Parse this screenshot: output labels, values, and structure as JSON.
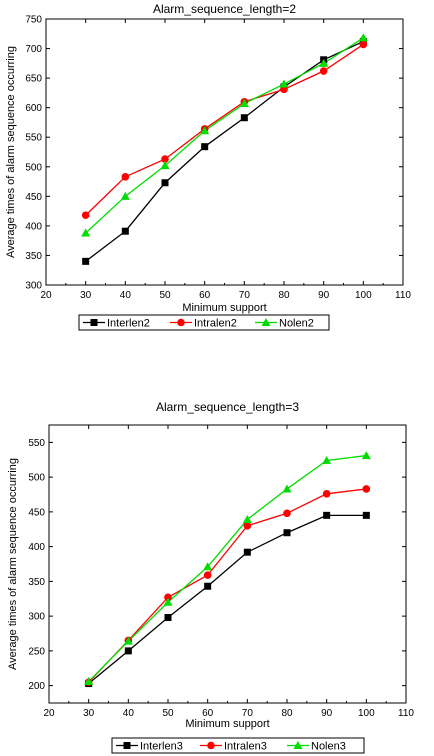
{
  "chart_data": [
    {
      "type": "line",
      "title": "Alarm_sequence_length=2",
      "xlabel": "Minimum support",
      "ylabel": "Average times of alarm sequence occurring",
      "xlim": [
        20,
        110
      ],
      "ylim": [
        300,
        750
      ],
      "xticks": [
        20,
        30,
        40,
        50,
        60,
        70,
        80,
        90,
        100,
        110
      ],
      "yticks": [
        300,
        350,
        400,
        450,
        500,
        550,
        600,
        650,
        700,
        750
      ],
      "legend_position": "bottom",
      "grid": false,
      "x": [
        30,
        40,
        50,
        60,
        70,
        80,
        90,
        100
      ],
      "series": [
        {
          "name": "Interlen2",
          "color": "#000000",
          "marker": "square",
          "values": [
            340,
            391,
            473,
            534,
            583,
            635,
            681,
            712
          ]
        },
        {
          "name": "Intralen2",
          "color": "#ff0000",
          "marker": "circle",
          "values": [
            418,
            483,
            513,
            564,
            610,
            631,
            662,
            707
          ]
        },
        {
          "name": "Nolen2",
          "color": "#00dd00",
          "marker": "triangle",
          "values": [
            388,
            450,
            502,
            561,
            607,
            640,
            675,
            718
          ]
        }
      ]
    },
    {
      "type": "line",
      "title": "Alarm_sequence_length=3",
      "xlabel": "Minimum support",
      "ylabel": "Average times of alarm sequence occurring",
      "xlim": [
        20,
        110
      ],
      "ylim": [
        175,
        575
      ],
      "xticks": [
        20,
        30,
        40,
        50,
        60,
        70,
        80,
        90,
        100,
        110
      ],
      "yticks": [
        200,
        250,
        300,
        350,
        400,
        450,
        500,
        550
      ],
      "legend_position": "bottom",
      "grid": false,
      "x": [
        30,
        40,
        50,
        60,
        70,
        80,
        90,
        100
      ],
      "series": [
        {
          "name": "Interlen3",
          "color": "#000000",
          "marker": "square",
          "values": [
            203,
            250,
            298,
            343,
            392,
            420,
            445,
            445
          ]
        },
        {
          "name": "Intralen3",
          "color": "#ff0000",
          "marker": "circle",
          "values": [
            205,
            265,
            327,
            359,
            430,
            448,
            476,
            483
          ]
        },
        {
          "name": "Nolen3",
          "color": "#00dd00",
          "marker": "triangle",
          "values": [
            206,
            264,
            320,
            371,
            439,
            483,
            524,
            531
          ]
        }
      ]
    }
  ]
}
